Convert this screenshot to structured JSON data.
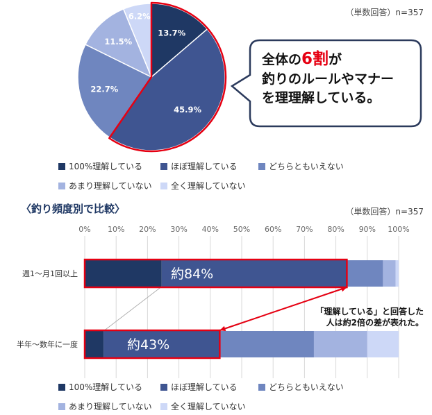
{
  "colors": {
    "full": "#1f3864",
    "mostly": "#3f5591",
    "neither": "#6f86bf",
    "little": "#a3b3e0",
    "none": "#cdd8f7",
    "highlight": "#e60012"
  },
  "top_note": "（単数回答）n=357",
  "callout": {
    "line1_pre": "全体の",
    "line1_emph": "6割",
    "line1_post": "が",
    "line2": "釣りのルールやマナー",
    "line3": "を理理解している。"
  },
  "section_title": "〈釣り頻度別で比較〉",
  "bottom_note": "（単数回答）n=357",
  "arrow_note": {
    "line1": "「理解している」と回答した",
    "line2": "人は約2倍の差が表れた。"
  },
  "legend": [
    {
      "key": "full",
      "label": "100%理解している"
    },
    {
      "key": "mostly",
      "label": "ほぼ理解している"
    },
    {
      "key": "neither",
      "label": "どちらともいえない"
    },
    {
      "key": "little",
      "label": "あまり理解していない"
    },
    {
      "key": "none",
      "label": "全く理解していない"
    }
  ],
  "chart_data": [
    {
      "type": "pie",
      "labels": [
        "100%理解している",
        "ほぼ理解している",
        "どちらともいえない",
        "あまり理解していない",
        "全く理解していない"
      ],
      "values": [
        13.7,
        45.9,
        22.7,
        11.5,
        6.2
      ],
      "value_labels": [
        "13.7%",
        "45.9%",
        "22.7%",
        "11.5%",
        "6.2%"
      ],
      "highlighted": [
        "100%理解している",
        "ほぼ理解している"
      ]
    },
    {
      "type": "bar",
      "orientation": "horizontal",
      "stacked": true,
      "categories": [
        "週1～月1回以上",
        "半年～数年に一度"
      ],
      "x_ticks": [
        "0%",
        "10%",
        "20%",
        "30%",
        "40%",
        "50%",
        "60%",
        "70%",
        "80%",
        "90%",
        "100%"
      ],
      "xlim": [
        0,
        100
      ],
      "series": [
        {
          "name": "100%理解している",
          "values": [
            24.5,
            6.0
          ]
        },
        {
          "name": "ほぼ理解している",
          "values": [
            59.0,
            37.0
          ]
        },
        {
          "name": "どちらともいえない",
          "values": [
            11.5,
            30.0
          ]
        },
        {
          "name": "あまり理解していない",
          "values": [
            4.0,
            17.0
          ]
        },
        {
          "name": "全く理解していない",
          "values": [
            1.0,
            10.0
          ]
        }
      ],
      "annotations": [
        "約84%",
        "約43%"
      ]
    }
  ]
}
